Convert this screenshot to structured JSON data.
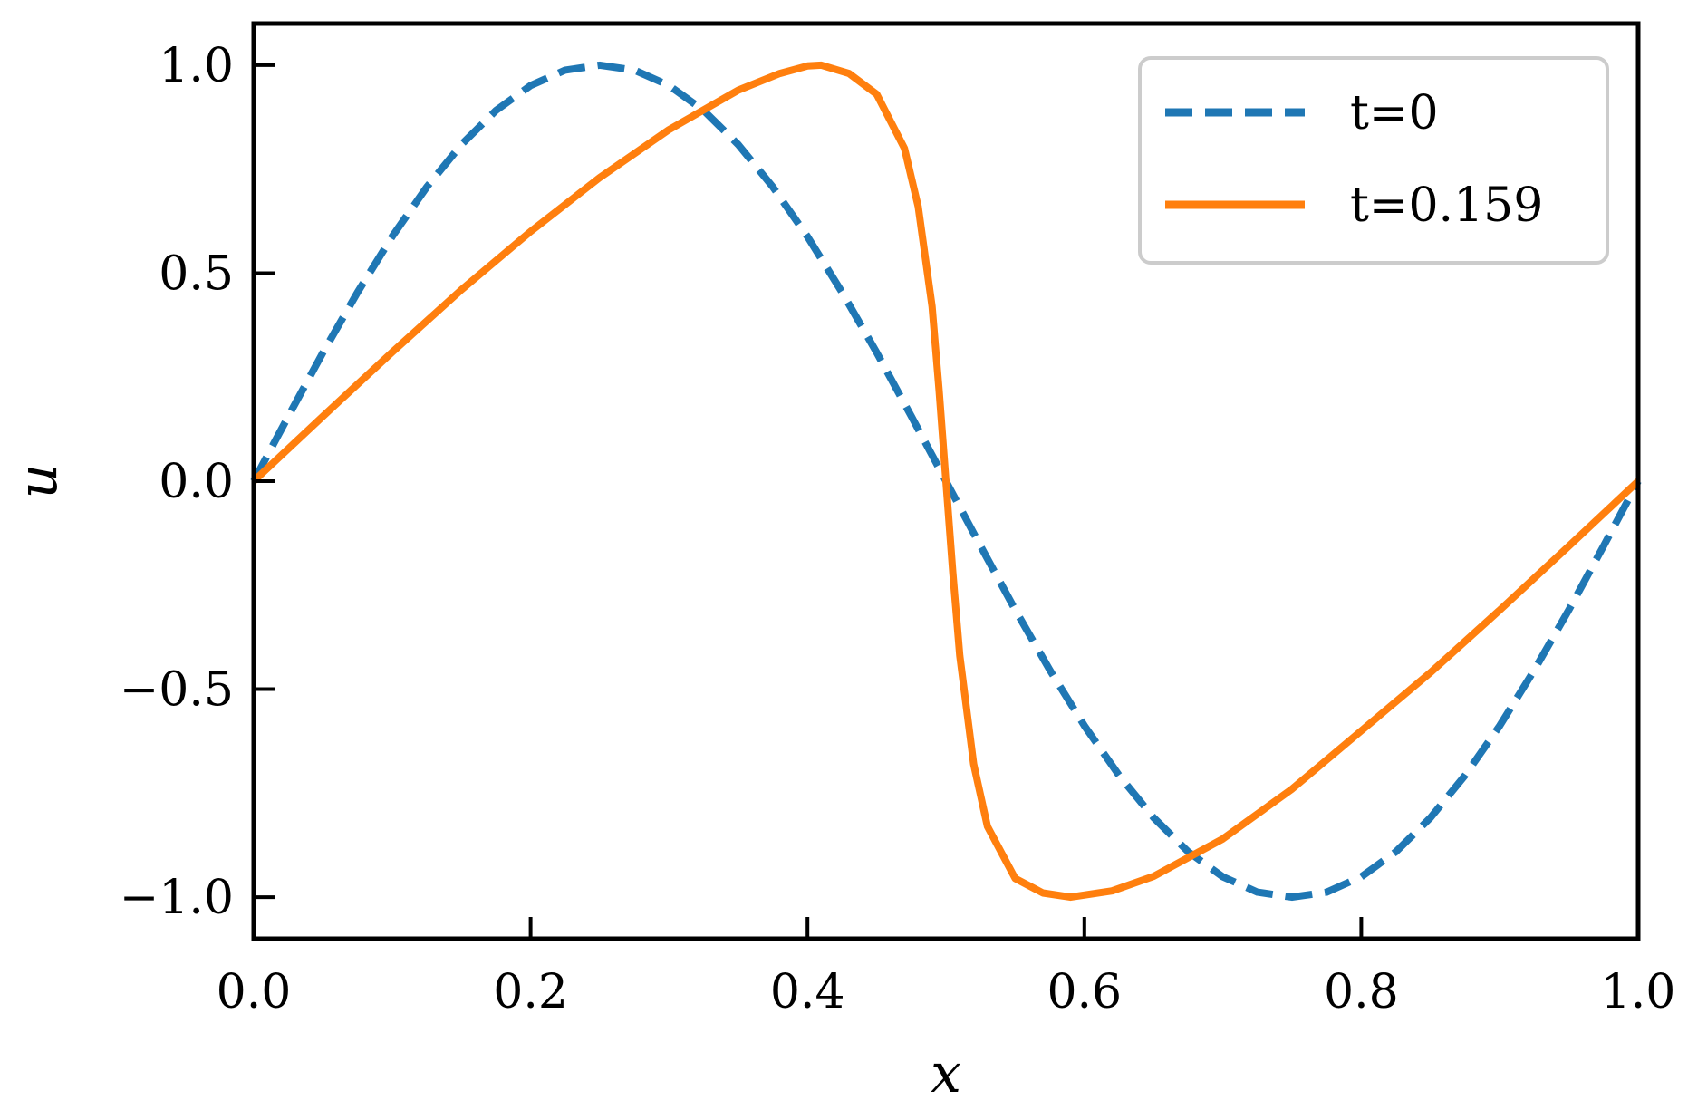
{
  "chart_data": {
    "type": "line",
    "title": "",
    "xlabel": "x",
    "ylabel": "u",
    "xlim": [
      0.0,
      1.0
    ],
    "ylim": [
      -1.1,
      1.1
    ],
    "xticks": [
      0.0,
      0.2,
      0.4,
      0.6,
      0.8,
      1.0
    ],
    "xtick_labels": [
      "0.0",
      "0.2",
      "0.4",
      "0.6",
      "0.8",
      "1.0"
    ],
    "yticks": [
      -1.0,
      -0.5,
      0.0,
      0.5,
      1.0
    ],
    "ytick_labels": [
      "−1.0",
      "−0.5",
      "0.0",
      "0.5",
      "1.0"
    ],
    "grid": false,
    "legend_position": "top-right",
    "series": [
      {
        "name": "t=0",
        "color": "#1f77b4",
        "style": "dashed",
        "x": [
          0.0,
          0.025,
          0.05,
          0.075,
          0.1,
          0.125,
          0.15,
          0.175,
          0.2,
          0.225,
          0.25,
          0.275,
          0.3,
          0.325,
          0.35,
          0.375,
          0.4,
          0.425,
          0.45,
          0.475,
          0.5,
          0.525,
          0.55,
          0.575,
          0.6,
          0.625,
          0.65,
          0.675,
          0.7,
          0.725,
          0.75,
          0.775,
          0.8,
          0.825,
          0.85,
          0.875,
          0.9,
          0.925,
          0.95,
          0.975,
          1.0
        ],
        "y": [
          0.0,
          0.156,
          0.309,
          0.454,
          0.588,
          0.707,
          0.809,
          0.891,
          0.951,
          0.988,
          1.0,
          0.988,
          0.951,
          0.891,
          0.809,
          0.707,
          0.588,
          0.454,
          0.309,
          0.156,
          0.0,
          -0.156,
          -0.309,
          -0.454,
          -0.588,
          -0.707,
          -0.809,
          -0.891,
          -0.951,
          -0.988,
          -1.0,
          -0.988,
          -0.951,
          -0.891,
          -0.809,
          -0.707,
          -0.588,
          -0.454,
          -0.309,
          -0.156,
          0.0
        ]
      },
      {
        "name": "t=0.159",
        "color": "#ff7f0e",
        "style": "solid",
        "x": [
          0.0,
          0.05,
          0.1,
          0.15,
          0.2,
          0.25,
          0.3,
          0.35,
          0.38,
          0.4,
          0.41,
          0.43,
          0.45,
          0.47,
          0.48,
          0.49,
          0.495,
          0.5,
          0.505,
          0.51,
          0.52,
          0.53,
          0.55,
          0.57,
          0.59,
          0.62,
          0.65,
          0.7,
          0.75,
          0.8,
          0.85,
          0.9,
          0.95,
          1.0
        ],
        "y": [
          0.0,
          0.156,
          0.31,
          0.46,
          0.6,
          0.73,
          0.845,
          0.94,
          0.98,
          0.998,
          1.0,
          0.98,
          0.93,
          0.8,
          0.66,
          0.42,
          0.22,
          0.0,
          -0.22,
          -0.42,
          -0.68,
          -0.83,
          -0.955,
          -0.99,
          -1.0,
          -0.985,
          -0.95,
          -0.86,
          -0.74,
          -0.6,
          -0.46,
          -0.31,
          -0.156,
          0.0
        ]
      }
    ]
  }
}
